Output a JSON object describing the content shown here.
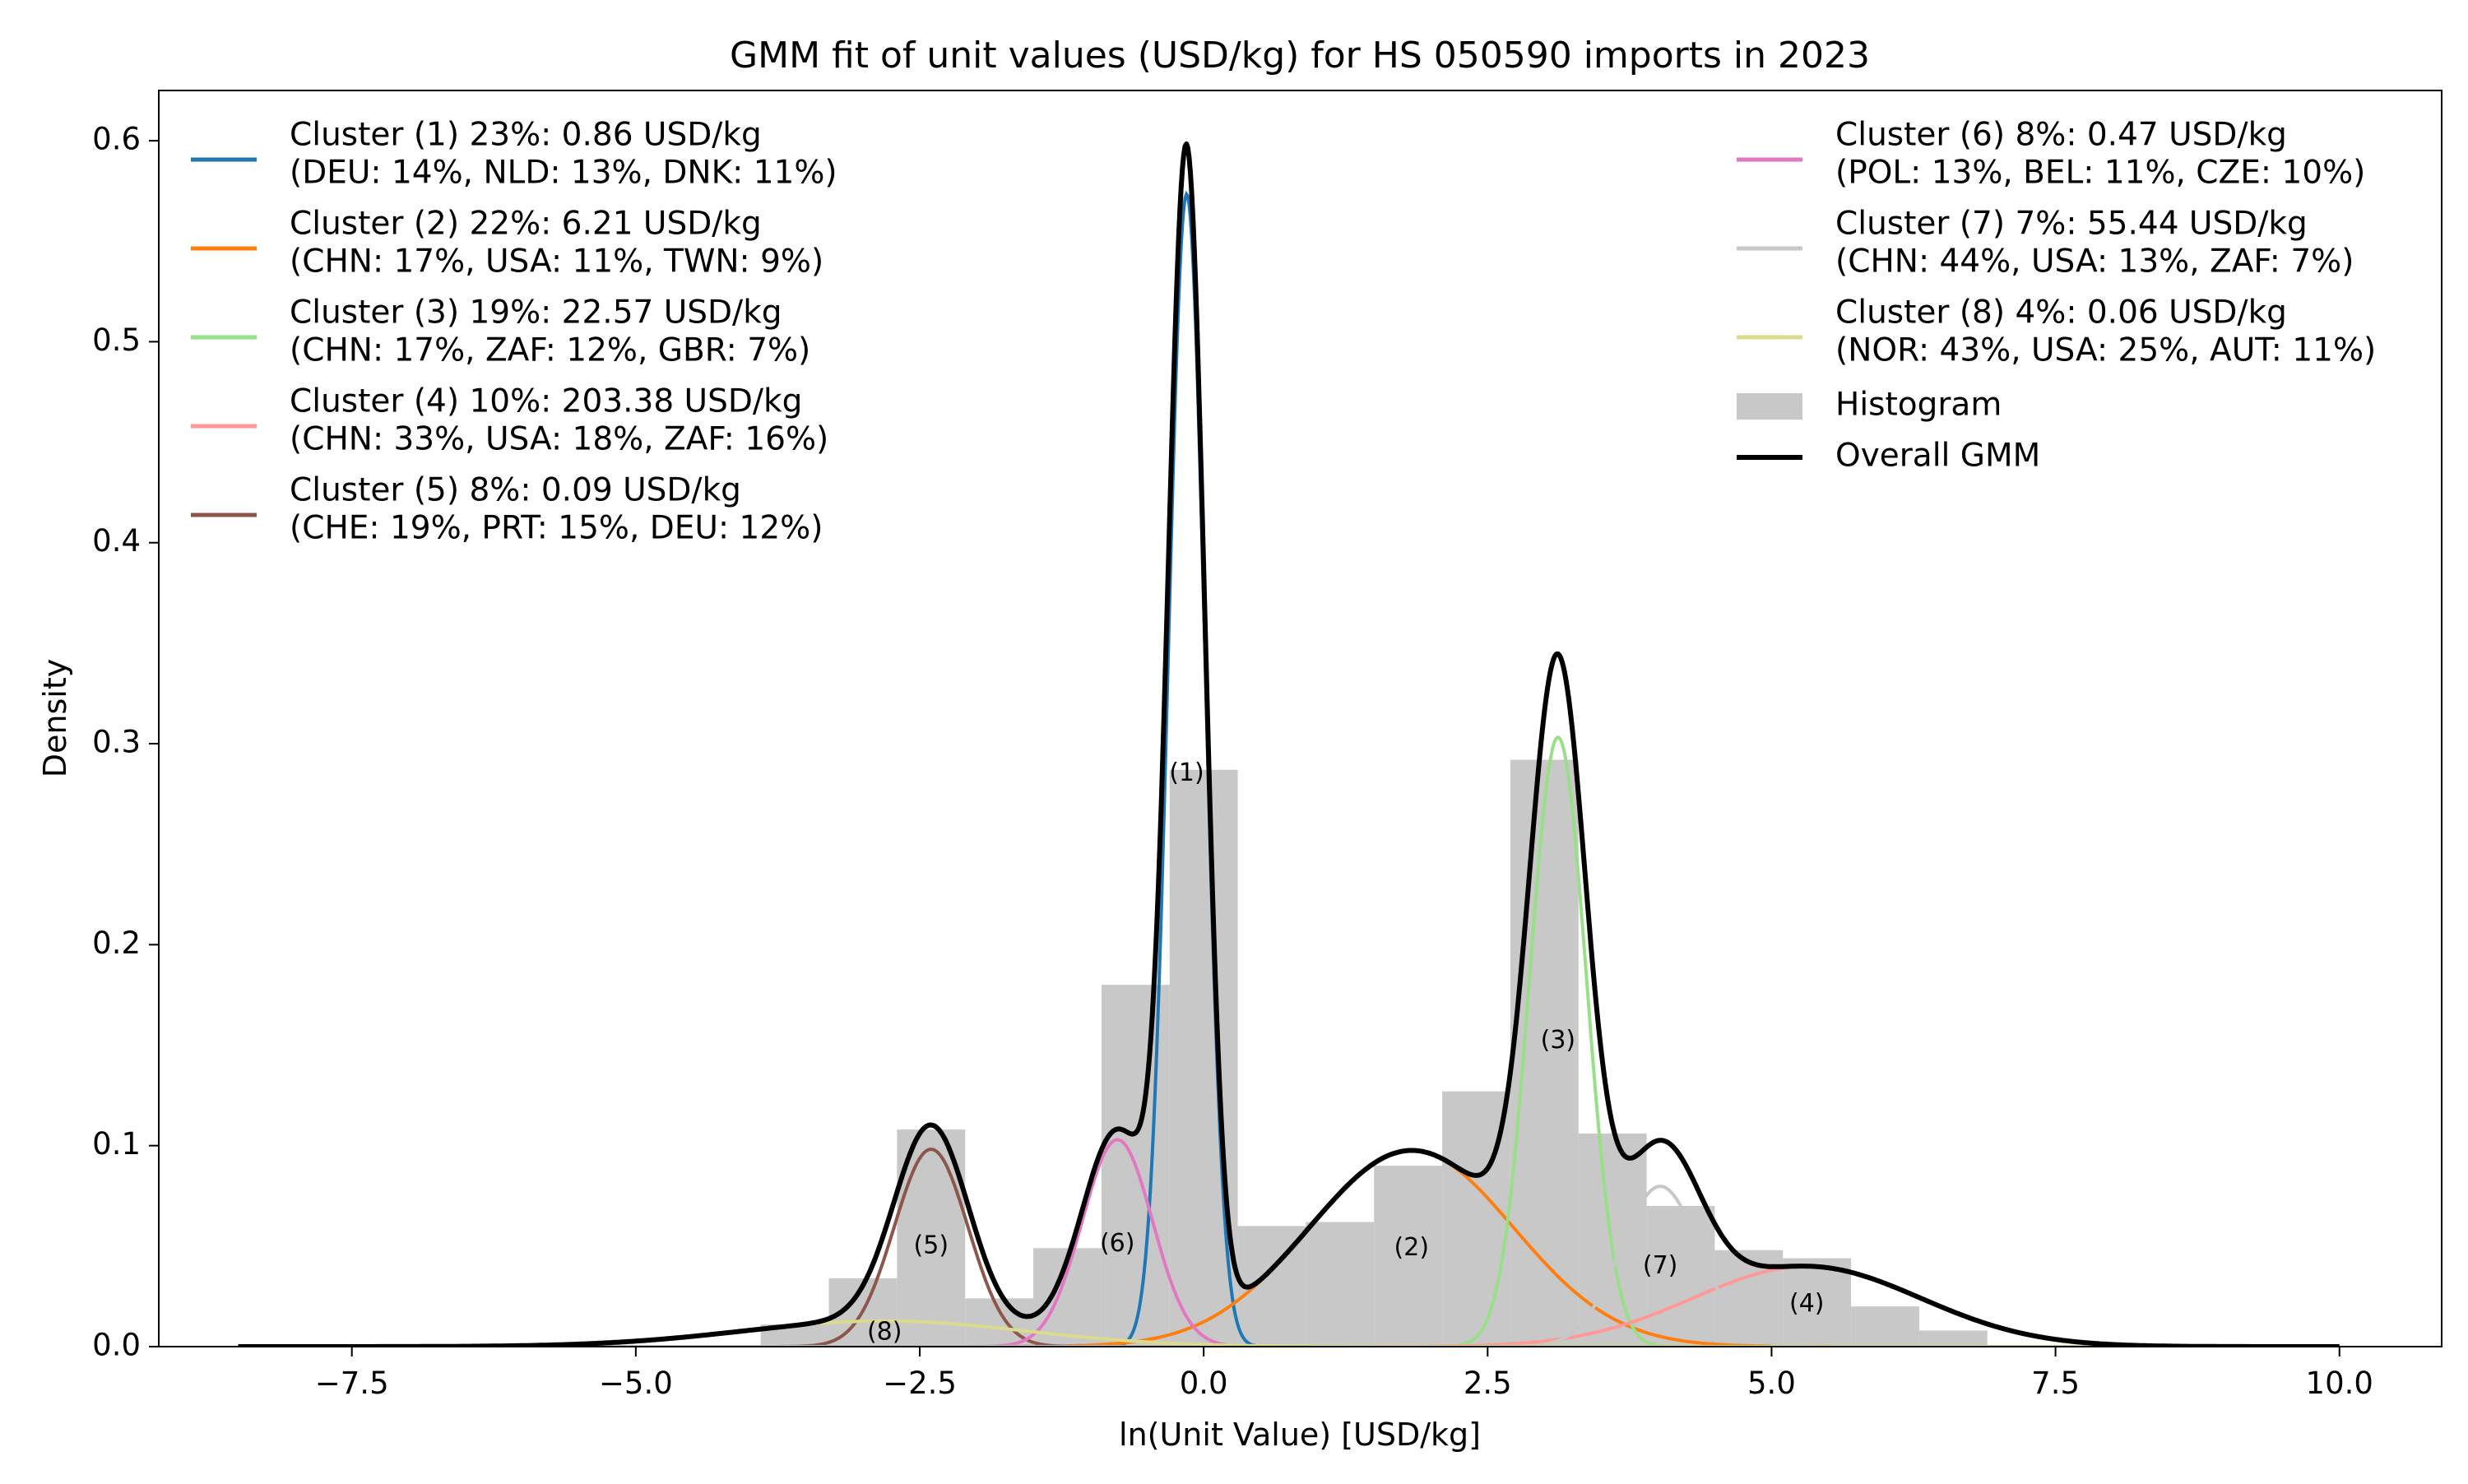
{
  "chart_data": {
    "type": "line",
    "title": "GMM fit of unit values (USD/kg) for HS 050590 imports in 2023",
    "xlabel": "ln(Unit Value) [USD/kg]",
    "ylabel": "Density",
    "xlim": [
      -9.2,
      10.9
    ],
    "ylim": [
      0,
      0.625
    ],
    "xticks": [
      -7.5,
      -5.0,
      -2.5,
      0.0,
      2.5,
      5.0,
      7.5,
      10.0
    ],
    "xtick_labels": [
      "−7.5",
      "−5.0",
      "−2.5",
      "0.0",
      "2.5",
      "5.0",
      "7.5",
      "10.0"
    ],
    "yticks": [
      0.0,
      0.1,
      0.2,
      0.3,
      0.4,
      0.5,
      0.6
    ],
    "ytick_labels": [
      "0.0",
      "0.1",
      "0.2",
      "0.3",
      "0.4",
      "0.5",
      "0.6"
    ],
    "grid": false,
    "legend_left": [
      {
        "line1": "Cluster (1) 23%: 0.86 USD/kg",
        "line2": "(DEU: 14%, NLD: 13%, DNK: 11%)",
        "color": "#1f77b4"
      },
      {
        "line1": "Cluster (2) 22%: 6.21 USD/kg",
        "line2": "(CHN: 17%, USA: 11%, TWN: 9%)",
        "color": "#ff7f0e"
      },
      {
        "line1": "Cluster (3) 19%: 22.57 USD/kg",
        "line2": "(CHN: 17%, ZAF: 12%, GBR: 7%)",
        "color": "#98df8a"
      },
      {
        "line1": "Cluster (4) 10%: 203.38 USD/kg",
        "line2": "(CHN: 33%, USA: 18%, ZAF: 16%)",
        "color": "#ff9896"
      },
      {
        "line1": "Cluster (5) 8%: 0.09 USD/kg",
        "line2": "(CHE: 19%, PRT: 15%, DEU: 12%)",
        "color": "#8c564b"
      }
    ],
    "legend_right": [
      {
        "line1": "Cluster (6) 8%: 0.47 USD/kg",
        "line2": "(POL: 13%, BEL: 11%, CZE: 10%)",
        "color": "#e377c2"
      },
      {
        "line1": "Cluster (7) 7%: 55.44 USD/kg",
        "line2": "(CHN: 44%, USA: 13%, ZAF: 7%)",
        "color": "#c7c7c7"
      },
      {
        "line1": "Cluster (8) 4%: 0.06 USD/kg",
        "line2": "(NOR: 43%, USA: 25%, AUT: 11%)",
        "color": "#dbdb8d"
      }
    ],
    "legend_histogram": "Histogram",
    "legend_overall": "Overall GMM",
    "histogram": {
      "color": "#c8c8c8",
      "bin_edges": [
        -3.9,
        -3.3,
        -2.7,
        -2.1,
        -1.5,
        -0.9,
        -0.3,
        0.3,
        0.9,
        1.5,
        2.1,
        2.7,
        3.3,
        3.9,
        4.5,
        5.1,
        5.7,
        6.3,
        6.9
      ],
      "heights": [
        0.011,
        0.034,
        0.108,
        0.024,
        0.049,
        0.18,
        0.287,
        0.06,
        0.062,
        0.09,
        0.127,
        0.292,
        0.106,
        0.07,
        0.048,
        0.044,
        0.02,
        0.008
      ]
    },
    "components": [
      {
        "label": "(1)",
        "weight": 0.23,
        "mean": -0.15,
        "sd": 0.16,
        "color": "#1f77b4"
      },
      {
        "label": "(2)",
        "weight": 0.22,
        "mean": 1.83,
        "sd": 0.9,
        "color": "#ff7f0e"
      },
      {
        "label": "(3)",
        "weight": 0.19,
        "mean": 3.12,
        "sd": 0.25,
        "color": "#98df8a"
      },
      {
        "label": "(4)",
        "weight": 0.1,
        "mean": 5.31,
        "sd": 1.0,
        "color": "#ff9896"
      },
      {
        "label": "(5)",
        "weight": 0.08,
        "mean": -2.4,
        "sd": 0.325,
        "color": "#8c564b"
      },
      {
        "label": "(6)",
        "weight": 0.08,
        "mean": -0.76,
        "sd": 0.31,
        "color": "#e377c2"
      },
      {
        "label": "(7)",
        "weight": 0.07,
        "mean": 4.02,
        "sd": 0.35,
        "color": "#c7c7c7"
      },
      {
        "label": "(8)",
        "weight": 0.04,
        "mean": -2.81,
        "sd": 1.25,
        "color": "#dbdb8d"
      }
    ],
    "component_labels": [
      {
        "text": "(1)",
        "x": -0.15,
        "y": 0.285
      },
      {
        "text": "(2)",
        "x": 1.83,
        "y": 0.049
      },
      {
        "text": "(3)",
        "x": 3.12,
        "y": 0.152
      },
      {
        "text": "(4)",
        "x": 5.31,
        "y": 0.021
      },
      {
        "text": "(5)",
        "x": -2.4,
        "y": 0.05
      },
      {
        "text": "(6)",
        "x": -0.76,
        "y": 0.051
      },
      {
        "text": "(7)",
        "x": 4.02,
        "y": 0.04
      },
      {
        "text": "(8)",
        "x": -2.81,
        "y": 0.007
      }
    ],
    "overall_color": "#000000",
    "curve_x_range": [
      -8.5,
      10.0
    ]
  }
}
